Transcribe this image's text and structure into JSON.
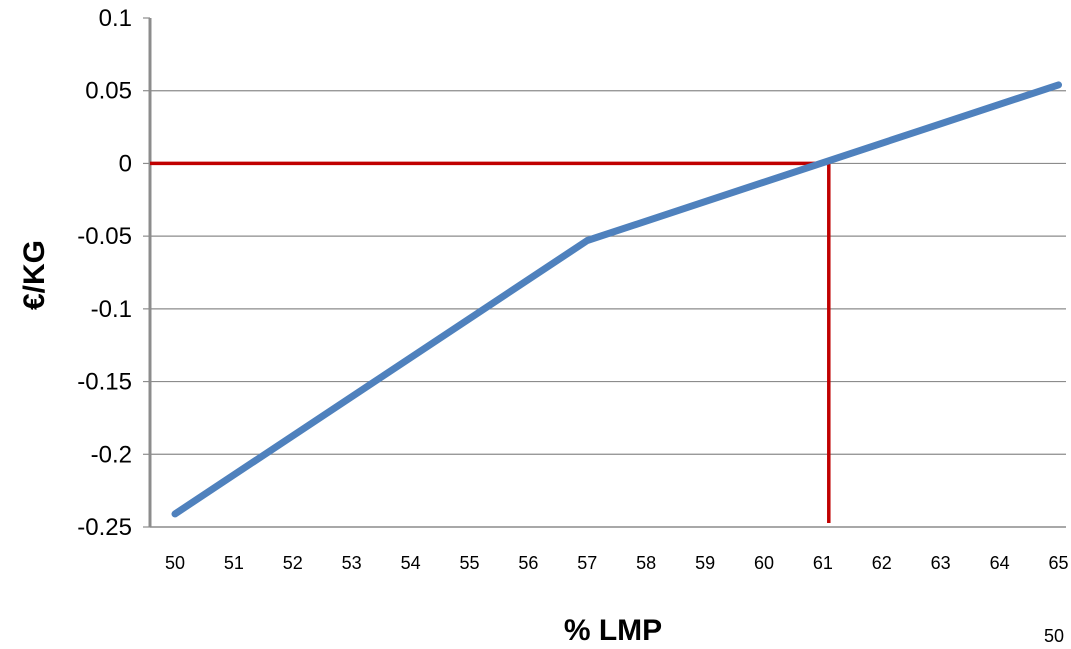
{
  "chart_data": {
    "type": "line",
    "title": "",
    "xlabel": "% LMP",
    "ylabel": "€/KG",
    "categories": [
      "50",
      "51",
      "52",
      "53",
      "54",
      "55",
      "56",
      "57",
      "58",
      "59",
      "60",
      "61",
      "62",
      "63",
      "64",
      "65"
    ],
    "ytick_labels": [
      "0.1",
      "0.05",
      "0",
      "-0.05",
      "-0.1",
      "-0.15",
      "-0.2",
      "-0.25"
    ],
    "ylim": [
      -0.25,
      0.1
    ],
    "grid": true,
    "legend": "none",
    "series": [
      {
        "x": [
          50,
          57,
          65
        ],
        "values": [
          -0.241,
          -0.053,
          0.054
        ],
        "color": "#4F81BD"
      }
    ],
    "annotations": {
      "reference_lines": {
        "color": "#C00000",
        "horizontal_y": 0,
        "vertical_x": 61.1
      }
    },
    "grid_color": "#8C8C8C",
    "axis_color": "#8C8C8C"
  },
  "page_number": "50"
}
